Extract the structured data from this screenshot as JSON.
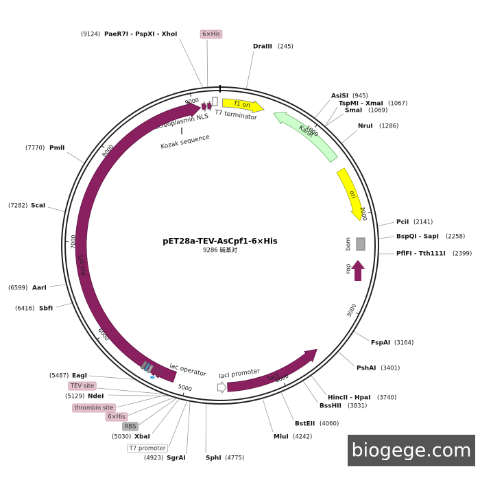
{
  "title": "pET28a-TEV-AsCpf1-6×His",
  "subtitle": "9286 碱基对",
  "sites": [
    {
      "name": "PaeR7I - PspXI - XhoI",
      "position": "(9124)"
    },
    {
      "name": "DraIII",
      "position": "(245)"
    },
    {
      "name": "AsiSI",
      "position": "(945)"
    },
    {
      "name": "TspMI - XmaI",
      "position": "(1067)"
    },
    {
      "name": "SmaI",
      "position": "(1069)"
    },
    {
      "name": "NruI",
      "position": "(1286)"
    },
    {
      "name": "PciI",
      "position": "(2141)"
    },
    {
      "name": "BspQI - SapI",
      "position": "(2258)"
    },
    {
      "name": "PflFI - Tth111I",
      "position": "(2399)"
    },
    {
      "name": "FspAI",
      "position": "(3164)"
    },
    {
      "name": "PshAI",
      "position": "(3401)"
    },
    {
      "name": "HincII - HpaI",
      "position": "(3740)"
    },
    {
      "name": "BssHII",
      "position": "(3831)"
    },
    {
      "name": "BstEII",
      "position": "(4060)"
    },
    {
      "name": "MluI",
      "position": "(4242)"
    },
    {
      "name": "SphI",
      "position": "(4775)"
    },
    {
      "name": "SgrAI",
      "position": "(4923)"
    },
    {
      "name": "XbaI",
      "position": "(5030)"
    },
    {
      "name": "NdeI",
      "position": "(5129)"
    },
    {
      "name": "EagI",
      "position": "(5487)"
    },
    {
      "name": "SbfI",
      "position": "(6416)"
    },
    {
      "name": "AarI",
      "position": "(6599)"
    },
    {
      "name": "ScaI",
      "position": "(7282)"
    },
    {
      "name": "PmlI",
      "position": "(7770)"
    }
  ],
  "boxed_labels": [
    "6×His",
    "TEV site",
    "thrombin site",
    "6×His",
    "RBS",
    "T7 promoter"
  ],
  "features": [
    "f1 ori",
    "T7 terminator",
    "nucleoplasmin NLS",
    "Kozak sequence",
    "KanR",
    "ori",
    "bom",
    "rop",
    "AsCpf1",
    "lac operator",
    "lacI promoter",
    "lacI"
  ],
  "scale": [
    "1000",
    "2000",
    "3000",
    "4000",
    "5000",
    "6000",
    "7000",
    "8000",
    "9000"
  ],
  "watermark": "biogege.com"
}
